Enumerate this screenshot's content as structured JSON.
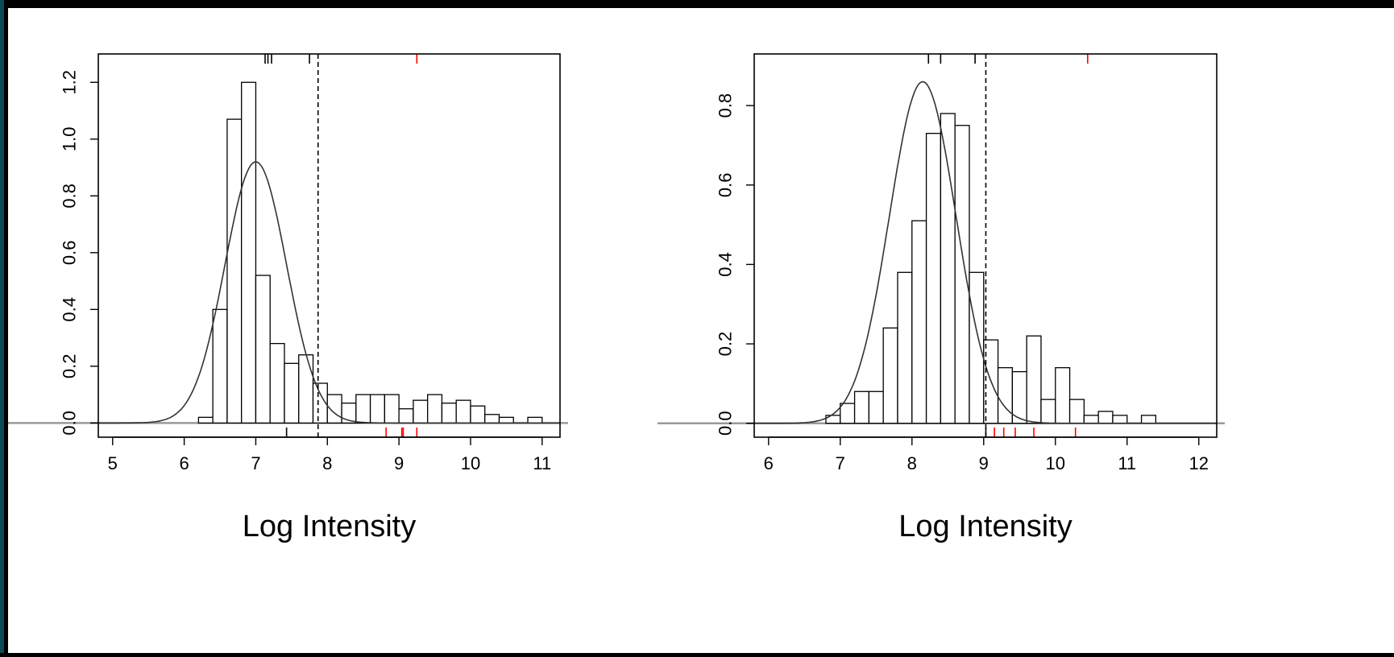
{
  "colors": {
    "bars_stroke": "#000000",
    "curve": "#333333",
    "zero_line": "#999999",
    "red_rug": "#ff0000",
    "black_rug": "#000000",
    "frame_accent": "#0b4a56"
  },
  "chart_data": [
    {
      "type": "bar",
      "subtype": "histogram with fitted density curve",
      "title": "",
      "xlabel": "Log Intensity",
      "ylabel": "",
      "xlim": [
        4.8,
        11.25
      ],
      "ylim": [
        -0.05,
        1.3
      ],
      "x_ticks": [
        "5",
        "6",
        "7",
        "8",
        "9",
        "10",
        "11"
      ],
      "y_ticks": [
        "0.0",
        "0.2",
        "0.4",
        "0.6",
        "0.8",
        "1.0",
        "1.2"
      ],
      "bin_edges": [
        6.2,
        6.4,
        6.6,
        6.8,
        7.0,
        7.2,
        7.4,
        7.6,
        7.8,
        8.0,
        8.2,
        8.4,
        8.6,
        8.8,
        9.0,
        9.2,
        9.4,
        9.6,
        9.8,
        10.0,
        10.2,
        10.4,
        10.6,
        10.8,
        11.0
      ],
      "bin_heights": [
        0.02,
        0.4,
        1.07,
        1.2,
        0.52,
        0.28,
        0.21,
        0.24,
        0.14,
        0.1,
        0.07,
        0.1,
        0.1,
        0.1,
        0.05,
        0.08,
        0.1,
        0.07,
        0.08,
        0.06,
        0.03,
        0.02,
        0.0,
        0.02
      ],
      "density_curve": {
        "mean": 7.0,
        "sd": 0.43,
        "peak": 0.92
      },
      "threshold_x": 7.87,
      "rug_top_black": [
        7.13,
        7.17,
        7.22,
        7.75
      ],
      "rug_top_red": [
        9.25
      ],
      "rug_bottom_black": [
        7.43
      ],
      "rug_bottom_red": [
        8.82,
        9.04,
        9.06,
        9.25
      ]
    },
    {
      "type": "bar",
      "subtype": "histogram with fitted density curve",
      "title": "",
      "xlabel": "Log Intensity",
      "ylabel": "",
      "xlim": [
        5.8,
        12.25
      ],
      "ylim": [
        -0.035,
        0.93
      ],
      "x_ticks": [
        "6",
        "7",
        "8",
        "9",
        "10",
        "11",
        "12"
      ],
      "y_ticks": [
        "0.0",
        "0.2",
        "0.4",
        "0.6",
        "0.8"
      ],
      "bin_edges": [
        6.8,
        7.0,
        7.2,
        7.4,
        7.6,
        7.8,
        8.0,
        8.2,
        8.4,
        8.6,
        8.8,
        9.0,
        9.2,
        9.4,
        9.6,
        9.8,
        10.0,
        10.2,
        10.4,
        10.6,
        10.8,
        11.0,
        11.2,
        11.4
      ],
      "bin_heights": [
        0.02,
        0.05,
        0.08,
        0.08,
        0.24,
        0.38,
        0.51,
        0.73,
        0.78,
        0.75,
        0.38,
        0.21,
        0.14,
        0.13,
        0.22,
        0.06,
        0.14,
        0.06,
        0.02,
        0.03,
        0.02,
        0.0,
        0.02
      ],
      "density_curve": {
        "mean": 8.15,
        "sd": 0.465,
        "peak": 0.86
      },
      "threshold_x": 9.03,
      "rug_top_black": [
        8.23,
        8.4,
        8.88
      ],
      "rug_top_red": [
        10.45
      ],
      "rug_bottom_black": [
        9.03
      ],
      "rug_bottom_red": [
        9.15,
        9.28,
        9.44,
        9.7,
        10.28
      ]
    }
  ]
}
